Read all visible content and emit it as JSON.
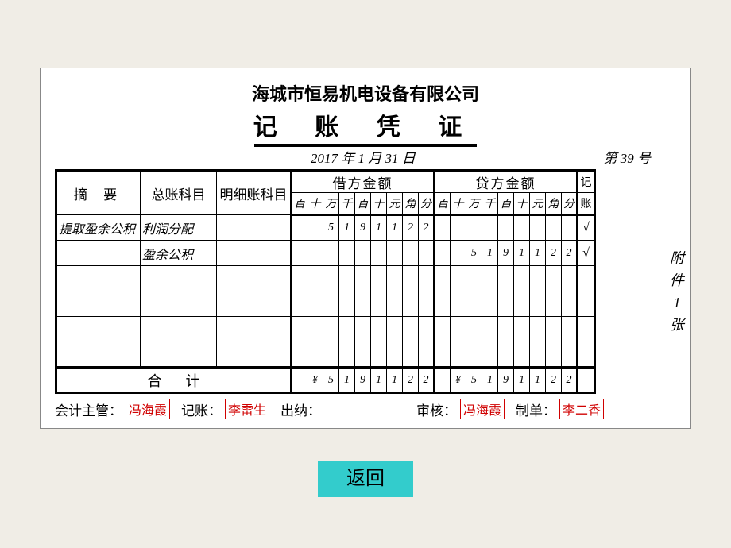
{
  "company": "海城市恒易机电设备有限公司",
  "title": "记 账 凭 证",
  "date": {
    "year": "2017",
    "month": "1",
    "day": "31",
    "yLab": "年",
    "mLab": "月",
    "dLab": "日"
  },
  "voucherNo": {
    "prefix": "第",
    "num": "39",
    "suffix": "号"
  },
  "headers": {
    "summary": "摘  要",
    "generalAccount": "总账科目",
    "detailAccount": "明细账科目",
    "debit": "借方金额",
    "credit": "贷方金额",
    "post1": "记",
    "post2": "账",
    "units": [
      "百",
      "十",
      "万",
      "千",
      "百",
      "十",
      "元",
      "角",
      "分"
    ]
  },
  "rows": [
    {
      "summary": "提取盈余公积",
      "gacct": "利润分配",
      "dacct": "",
      "debit": [
        "",
        "",
        "5",
        "1",
        "9",
        "1",
        "1",
        "2",
        "2"
      ],
      "credit": [
        "",
        "",
        "",
        "",
        "",
        "",
        "",
        "",
        ""
      ],
      "mark": "√"
    },
    {
      "summary": "",
      "gacct": "盈余公积",
      "dacct": "",
      "debit": [
        "",
        "",
        "",
        "",
        "",
        "",
        "",
        "",
        ""
      ],
      "credit": [
        "",
        "",
        "5",
        "1",
        "9",
        "1",
        "1",
        "2",
        "2"
      ],
      "mark": "√"
    },
    {
      "summary": "",
      "gacct": "",
      "dacct": "",
      "debit": [
        "",
        "",
        "",
        "",
        "",
        "",
        "",
        "",
        ""
      ],
      "credit": [
        "",
        "",
        "",
        "",
        "",
        "",
        "",
        "",
        ""
      ],
      "mark": ""
    },
    {
      "summary": "",
      "gacct": "",
      "dacct": "",
      "debit": [
        "",
        "",
        "",
        "",
        "",
        "",
        "",
        "",
        ""
      ],
      "credit": [
        "",
        "",
        "",
        "",
        "",
        "",
        "",
        "",
        ""
      ],
      "mark": ""
    },
    {
      "summary": "",
      "gacct": "",
      "dacct": "",
      "debit": [
        "",
        "",
        "",
        "",
        "",
        "",
        "",
        "",
        ""
      ],
      "credit": [
        "",
        "",
        "",
        "",
        "",
        "",
        "",
        "",
        ""
      ],
      "mark": ""
    },
    {
      "summary": "",
      "gacct": "",
      "dacct": "",
      "debit": [
        "",
        "",
        "",
        "",
        "",
        "",
        "",
        "",
        ""
      ],
      "credit": [
        "",
        "",
        "",
        "",
        "",
        "",
        "",
        "",
        ""
      ],
      "mark": ""
    }
  ],
  "total": {
    "label": "合计",
    "debit": [
      "¥",
      "5",
      "1",
      "9",
      "1",
      "1",
      "2",
      "2"
    ],
    "credit": [
      "¥",
      "5",
      "1",
      "9",
      "1",
      "1",
      "2",
      "2"
    ]
  },
  "signatures": {
    "supervisorLab": "会计主管：",
    "supervisor": "冯海霞",
    "bookkeeperLab": "记账：",
    "bookkeeper": "李雷生",
    "cashierLab": "出纳：",
    "auditorLab": "审核：",
    "auditor": "冯海霞",
    "preparerLab": "制单：",
    "preparer": "李二香"
  },
  "attachment": {
    "c1": "附",
    "c2": "件",
    "num": "1",
    "c3": "张"
  },
  "backBtn": "返回"
}
